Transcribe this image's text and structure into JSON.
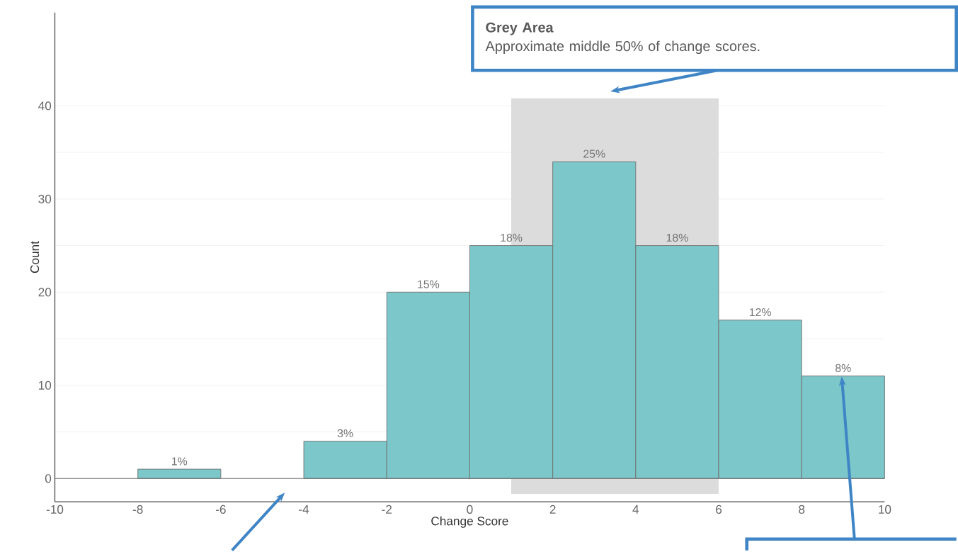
{
  "chart_data": {
    "type": "histogram",
    "xlabel": "Change Score",
    "ylabel": "Count",
    "bins": [
      -10,
      -8,
      -6,
      -4,
      -2,
      0,
      2,
      4,
      6,
      8,
      10
    ],
    "values": [
      0,
      1,
      0,
      4,
      20,
      25,
      34,
      25,
      17,
      11
    ],
    "color": "#7bc7c9",
    "xlim": [
      -10,
      10
    ],
    "ylim": [
      -2.5,
      50
    ],
    "xticks": [
      -10,
      -8,
      -6,
      -4,
      -2,
      0,
      2,
      4,
      6,
      8,
      10
    ],
    "yticks": [
      0,
      10,
      20,
      30,
      40
    ],
    "grid": "y",
    "ref_lines": [
      {
        "axis": "y",
        "value": 0,
        "color": "#737373"
      }
    ],
    "bands": [
      {
        "axis": "x",
        "from": 1,
        "to": 6,
        "color": "#dcdcdc"
      }
    ],
    "annotations": [
      "Grey Area",
      "Approximate middle 50% of change scores.",
      {
        "text": "1%",
        "x": -7,
        "y": 1
      },
      {
        "text": "3%",
        "x": -3,
        "y": 4
      },
      {
        "text": "15%",
        "x": -1,
        "y": 20
      },
      {
        "text": "18%",
        "x": 1,
        "y": 25
      },
      {
        "text": "25%",
        "x": 3,
        "y": 34
      },
      {
        "text": "18%",
        "x": 5,
        "y": 25
      },
      {
        "text": "12%",
        "x": 7,
        "y": 17
      },
      {
        "text": "8%",
        "x": 9,
        "y": 11
      }
    ]
  }
}
